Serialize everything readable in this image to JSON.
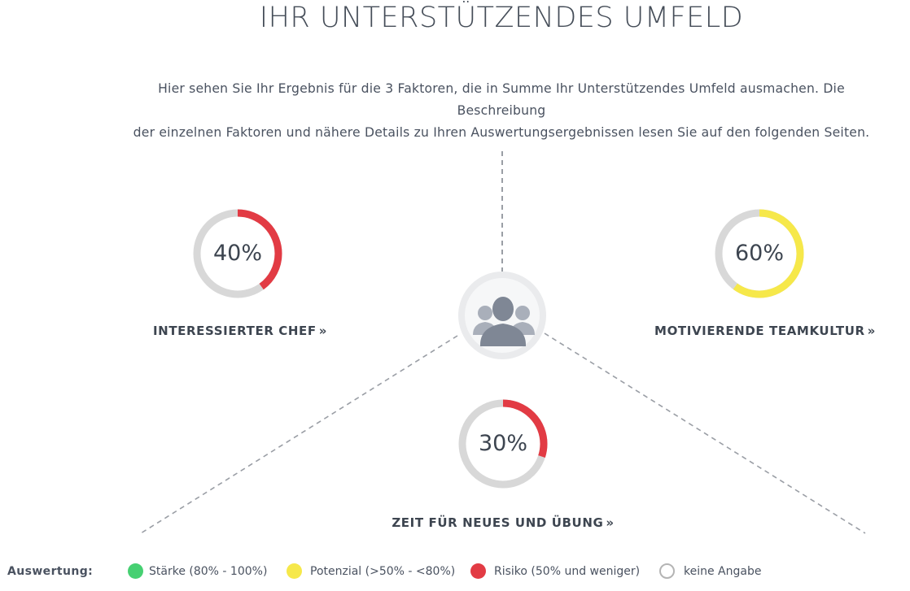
{
  "page": {
    "title": "IHR UNTERSTÜTZENDES UMFELD",
    "intro_line1": "Hier sehen Sie Ihr Ergebnis für die 3 Faktoren, die in Summe Ihr Unterstützendes Umfeld ausmachen. Die Beschreibung",
    "intro_line2": "der einzelnen Faktoren und nähere Details zu Ihren Auswertungsergebnissen lesen Sie auf den folgenden Seiten."
  },
  "colors": {
    "risk": "#e23b44",
    "potential": "#f6e84a",
    "strength": "#46d072",
    "track": "#d8d8d8",
    "none_border": "#b4b4b4"
  },
  "factors": [
    {
      "name": "INTERESSIERTER CHEF",
      "percent": 40,
      "percent_label": "40%",
      "rating": "risk",
      "link_icon": "double-chevron-right-icon"
    },
    {
      "name": "MOTIVIERENDE TEAMKULTUR",
      "percent": 60,
      "percent_label": "60%",
      "rating": "potential",
      "link_icon": "double-chevron-right-icon"
    },
    {
      "name": "ZEIT FÜR NEUES UND ÜBUNG",
      "percent": 30,
      "percent_label": "30%",
      "rating": "risk",
      "link_icon": "double-chevron-right-icon"
    }
  ],
  "center_icon": "team-group-icon",
  "legend": {
    "label": "Auswertung:",
    "items": [
      {
        "text": "Stärke (80% - 100%)",
        "color": "#46d072"
      },
      {
        "text": "Potenzial (>50% - <80%)",
        "color": "#f6e84a"
      },
      {
        "text": "Risiko (50% und weniger)",
        "color": "#e23b44"
      },
      {
        "text": "keine Angabe",
        "color": "none"
      }
    ]
  }
}
